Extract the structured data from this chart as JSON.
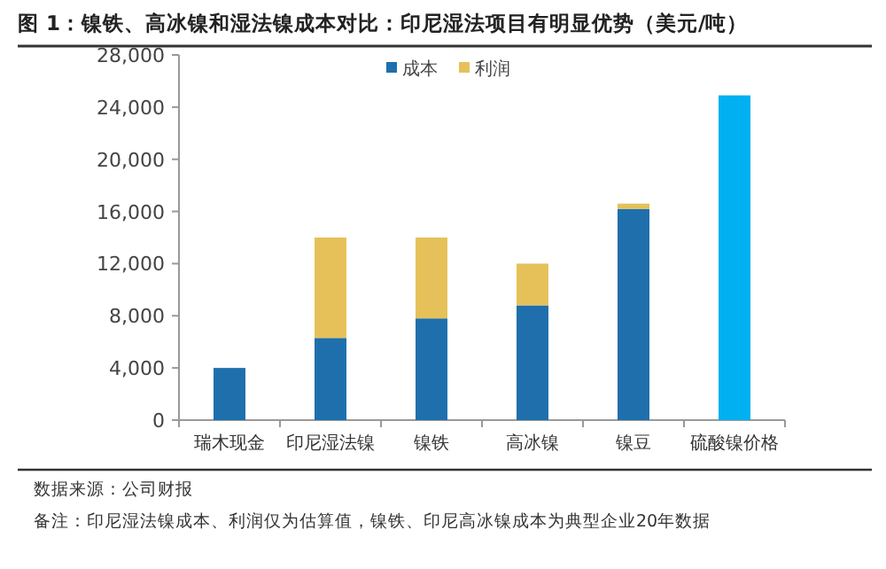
{
  "chart_data": {
    "type": "bar",
    "title": "图 1：镍铁、高冰镍和湿法镍成本对比：印尼湿法项目有明显优势（美元/吨）",
    "categories": [
      "瑞木现金",
      "印尼湿法镍",
      "镍铁",
      "高冰镍",
      "镍豆",
      "硫酸镍价格"
    ],
    "stacked": true,
    "series": [
      {
        "name": "成本",
        "color": "#1f6fad",
        "colors": [
          "#1f6fad",
          "#1f6fad",
          "#1f6fad",
          "#1f6fad",
          "#1f6fad",
          "#00b0f0"
        ],
        "values": [
          4000,
          6300,
          7800,
          8800,
          16200,
          24900
        ]
      },
      {
        "name": "利润",
        "color": "#e6c15a",
        "values": [
          null,
          7700,
          6200,
          3200,
          400,
          null
        ]
      }
    ],
    "ylim": [
      0,
      28000
    ],
    "yticks": [
      {
        "value": 0,
        "label": "0"
      },
      {
        "value": 4000,
        "label": "4,000"
      },
      {
        "value": 8000,
        "label": "8,000"
      },
      {
        "value": 12000,
        "label": "12,000"
      },
      {
        "value": 16000,
        "label": "16,000"
      },
      {
        "value": 20000,
        "label": "20,000"
      },
      {
        "value": 24000,
        "label": "24,000"
      },
      {
        "value": 28000,
        "label": "28,000"
      }
    ],
    "grid": false,
    "legend": "top",
    "annotations": [
      "数据来源：公司财报",
      "备注：印尼湿法镍成本、利润仅为估算值，镍铁、印尼高冰镍成本为典型企业20年数据"
    ]
  }
}
